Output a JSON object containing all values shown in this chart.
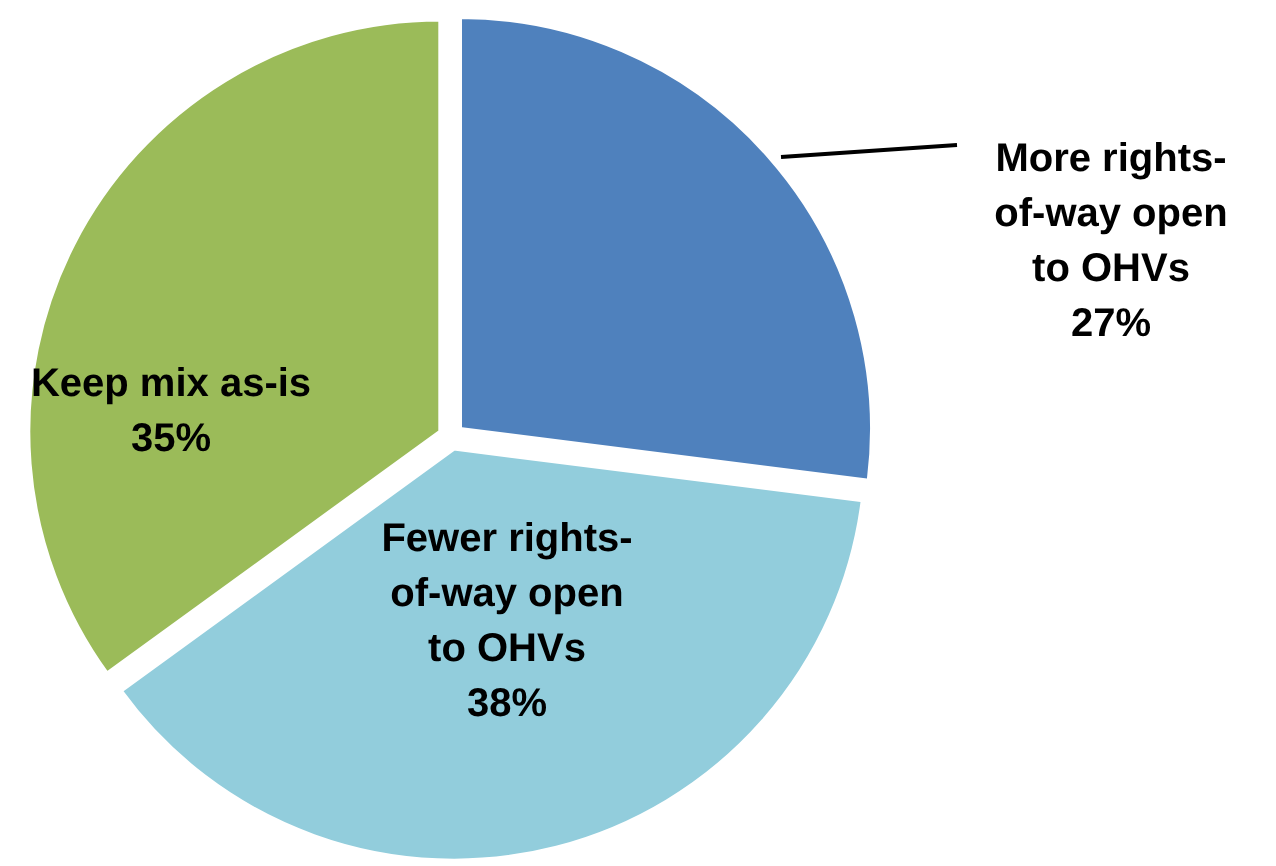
{
  "chart_data": {
    "type": "pie",
    "categories": [
      "More rights-of-way open to OHVs",
      "Fewer rights-of-way open to OHVs",
      "Keep mix as-is"
    ],
    "values": [
      27,
      38,
      35
    ],
    "colors": [
      "#4f81bd",
      "#92cddc",
      "#9bbb59"
    ],
    "value_labels": [
      "27%",
      "38%",
      "35%"
    ]
  }
}
